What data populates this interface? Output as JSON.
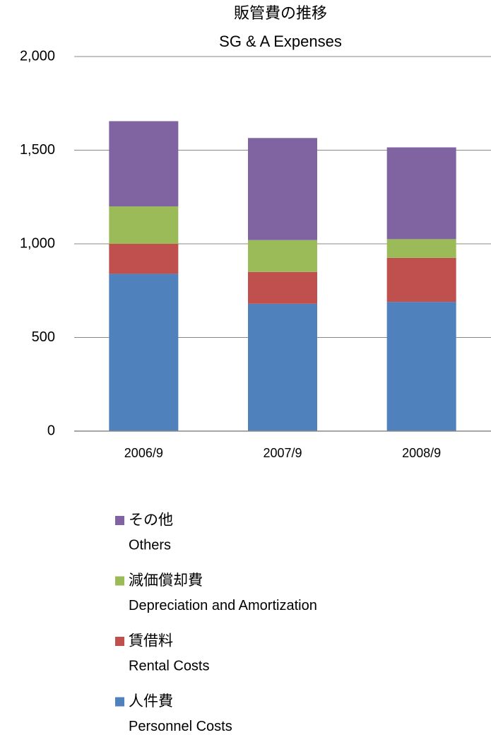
{
  "chart_data": {
    "type": "stacked_bar",
    "title": "販管費の推移",
    "subtitle": "SG & A Expenses",
    "categories": [
      "2006/9",
      "2007/9",
      "2008/9"
    ],
    "series": [
      {
        "name": "人件費",
        "name_en": "Personnel Costs",
        "color": "#4f81bd",
        "values": [
          840,
          680,
          690
        ]
      },
      {
        "name": "賃借料",
        "name_en": "Rental Costs",
        "color": "#c0504d",
        "values": [
          160,
          170,
          235
        ]
      },
      {
        "name": "減価償却費",
        "name_en": "Depreciation and Amortization",
        "color": "#9bbb59",
        "values": [
          200,
          170,
          100
        ]
      },
      {
        "name": "その他",
        "name_en": "Others",
        "color": "#8064a2",
        "values": [
          455,
          545,
          490
        ]
      }
    ],
    "ylim": [
      0,
      2000
    ],
    "yticks": [
      0,
      500,
      {
        "value": 1000,
        "label": "1,000"
      },
      {
        "value": 1500,
        "label": "1,500"
      },
      {
        "value": 2000,
        "label": "2,000"
      }
    ],
    "grid": true
  }
}
